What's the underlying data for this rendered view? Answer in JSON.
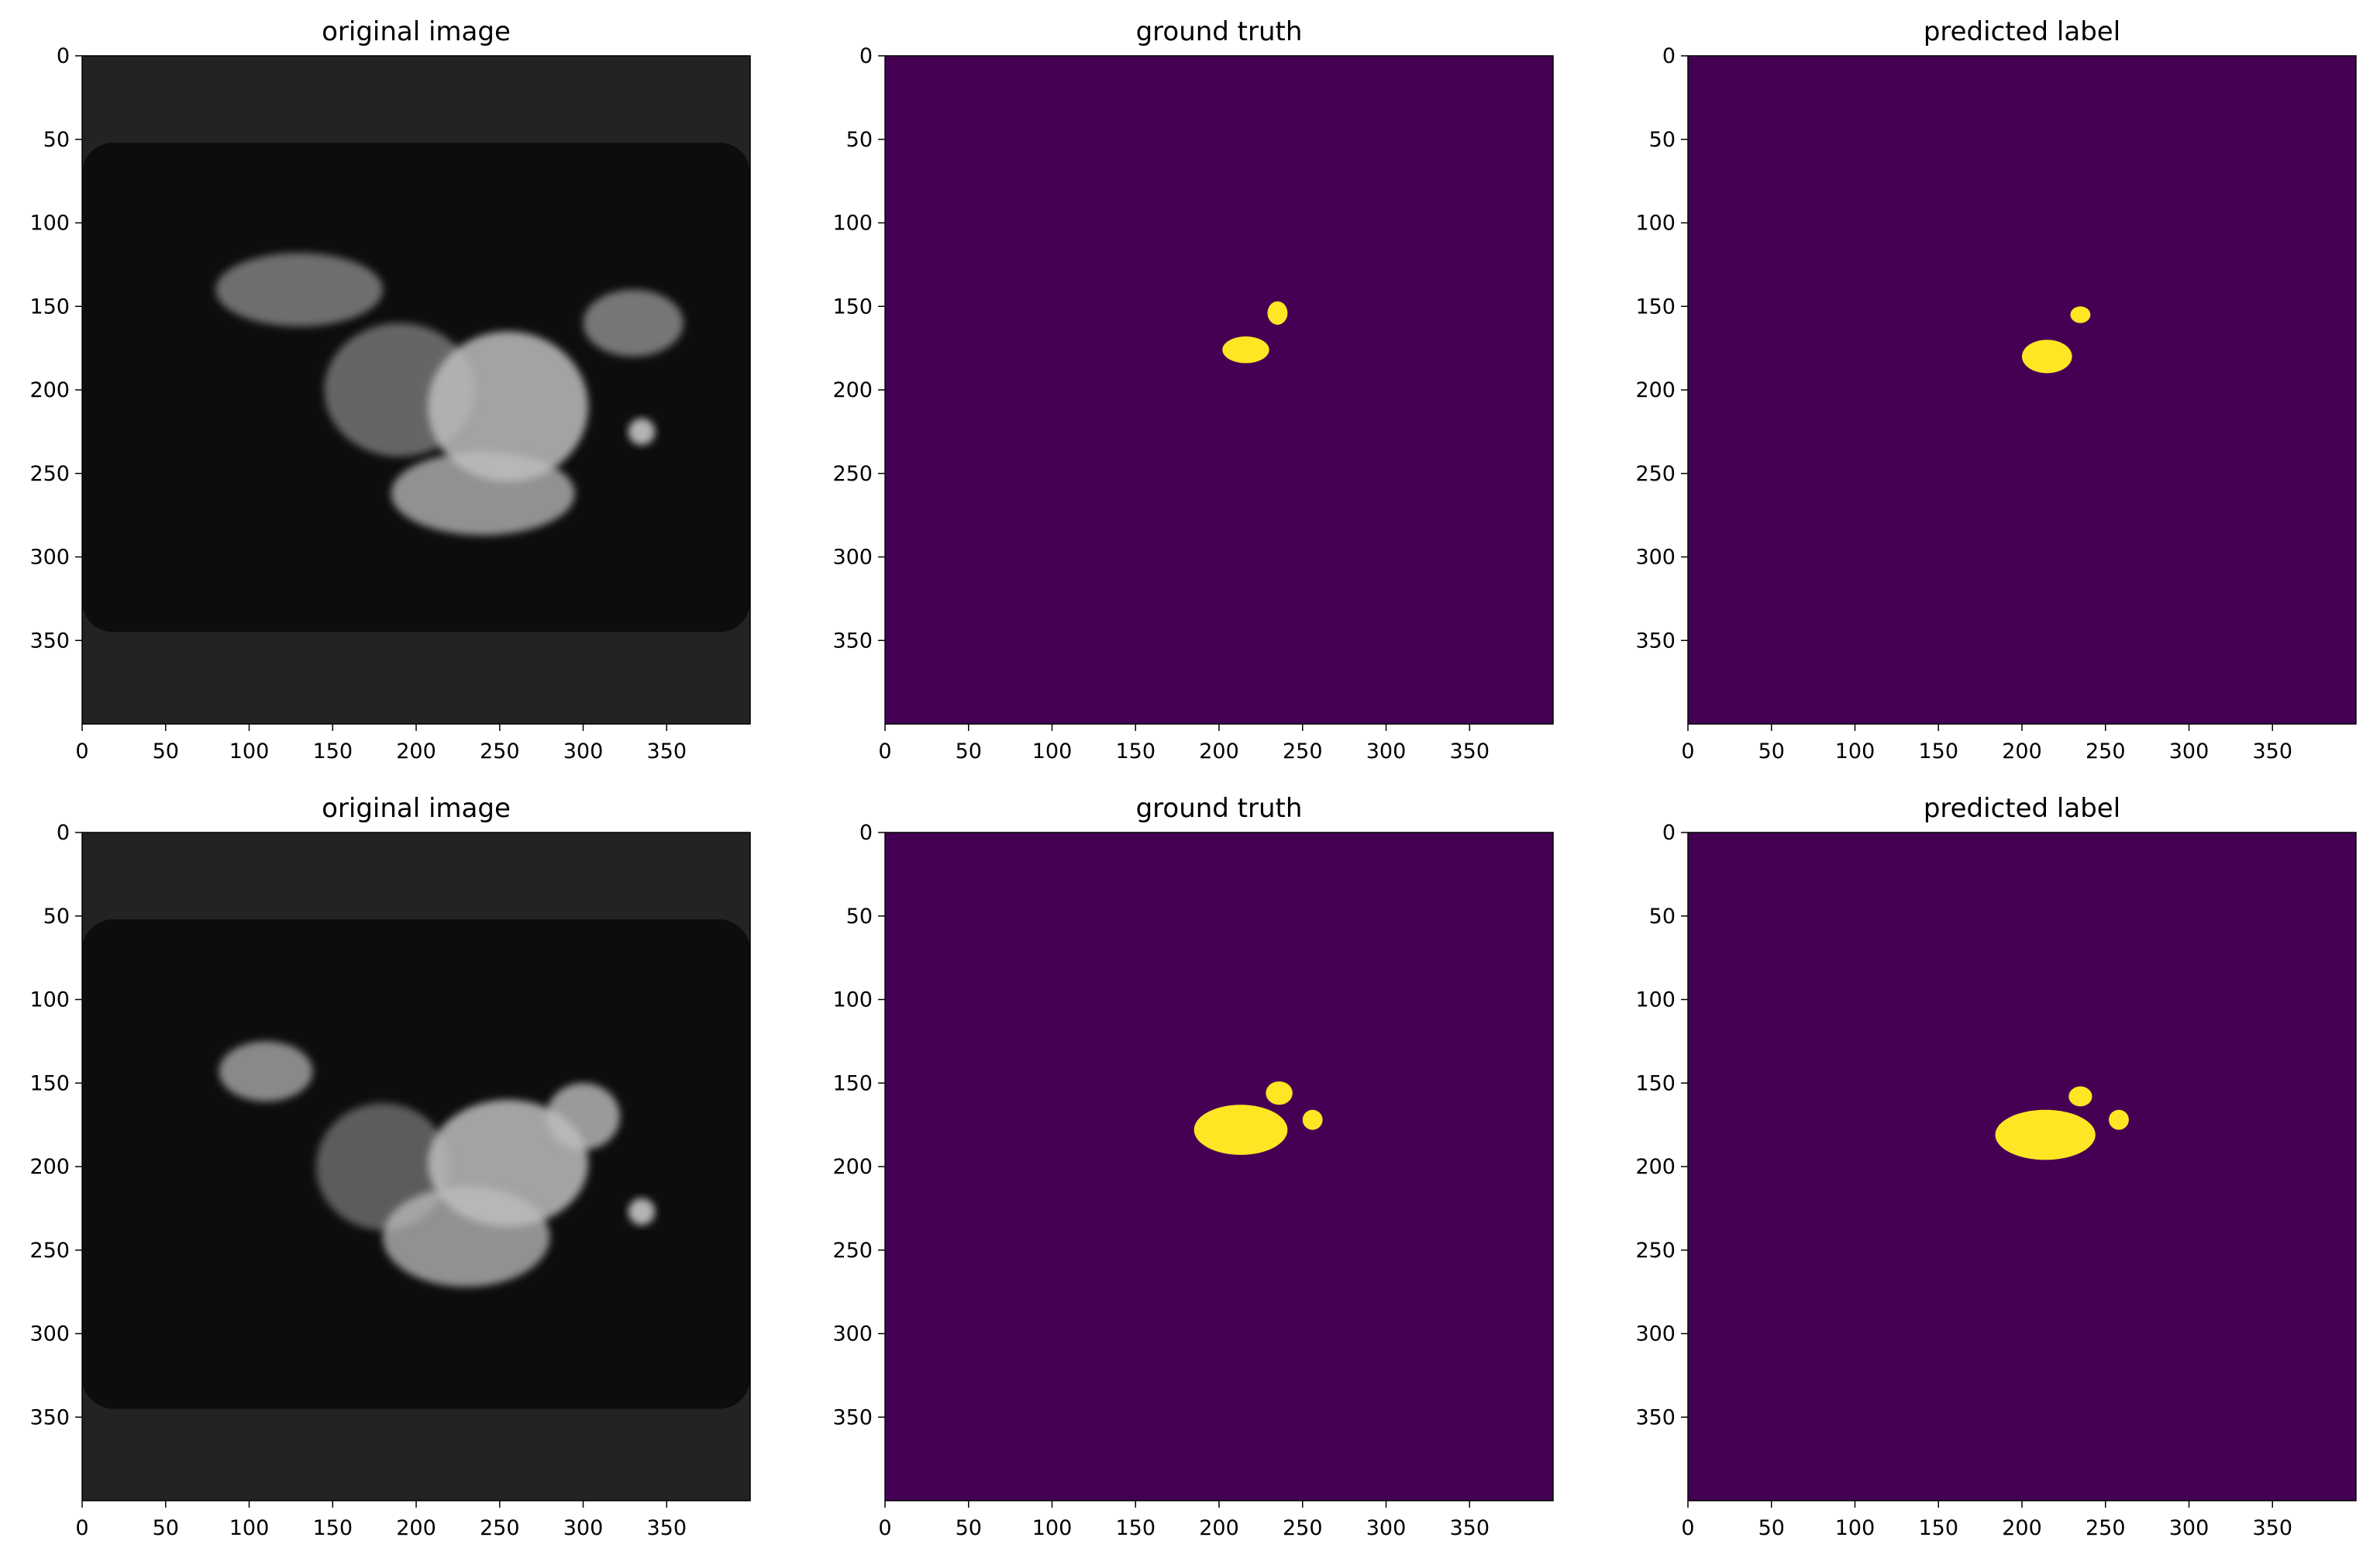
{
  "figure": {
    "rows": 2,
    "cols": 3
  },
  "chart_data": [
    {
      "type": "heatmap",
      "panel": "row1-col1",
      "title": "original image",
      "render": "mri",
      "xlim": [
        0,
        400
      ],
      "ylim": [
        400,
        0
      ],
      "xticks": [
        "0",
        "50",
        "100",
        "150",
        "200",
        "250",
        "300",
        "350"
      ],
      "yticks": [
        "0",
        "50",
        "100",
        "150",
        "200",
        "250",
        "300",
        "350"
      ],
      "colors": {
        "background": "#232323",
        "tissue": "#bdbdbd"
      },
      "body_extent": {
        "x": [
          0,
          400
        ],
        "y": [
          52,
          345
        ]
      },
      "regions": [
        {
          "cx": 255,
          "cy": 210,
          "rx": 48,
          "ry": 45,
          "level": 0.85
        },
        {
          "cx": 240,
          "cy": 262,
          "rx": 55,
          "ry": 25,
          "level": 0.75
        },
        {
          "cx": 190,
          "cy": 200,
          "rx": 45,
          "ry": 40,
          "level": 0.5
        },
        {
          "cx": 130,
          "cy": 140,
          "rx": 50,
          "ry": 22,
          "level": 0.55
        },
        {
          "cx": 330,
          "cy": 160,
          "rx": 30,
          "ry": 20,
          "level": 0.6
        },
        {
          "cx": 335,
          "cy": 225,
          "rx": 8,
          "ry": 8,
          "level": 0.95
        }
      ]
    },
    {
      "type": "heatmap",
      "panel": "row1-col2",
      "title": "ground truth",
      "render": "mask",
      "xlim": [
        0,
        400
      ],
      "ylim": [
        400,
        0
      ],
      "xticks": [
        "0",
        "50",
        "100",
        "150",
        "200",
        "250",
        "300",
        "350"
      ],
      "yticks": [
        "0",
        "50",
        "100",
        "150",
        "200",
        "250",
        "300",
        "350"
      ],
      "colors": {
        "background": "#440154",
        "label": "#fde725"
      },
      "blobs": [
        {
          "cx": 216,
          "cy": 176,
          "rx": 14,
          "ry": 8
        },
        {
          "cx": 235,
          "cy": 154,
          "rx": 6,
          "ry": 7
        }
      ]
    },
    {
      "type": "heatmap",
      "panel": "row1-col3",
      "title": "predicted label",
      "render": "mask",
      "xlim": [
        0,
        400
      ],
      "ylim": [
        400,
        0
      ],
      "xticks": [
        "0",
        "50",
        "100",
        "150",
        "200",
        "250",
        "300",
        "350"
      ],
      "yticks": [
        "0",
        "50",
        "100",
        "150",
        "200",
        "250",
        "300",
        "350"
      ],
      "colors": {
        "background": "#440154",
        "label": "#fde725"
      },
      "blobs": [
        {
          "cx": 215,
          "cy": 180,
          "rx": 15,
          "ry": 10
        },
        {
          "cx": 235,
          "cy": 155,
          "rx": 6,
          "ry": 5
        }
      ]
    },
    {
      "type": "heatmap",
      "panel": "row2-col1",
      "title": "original image",
      "render": "mri",
      "xlim": [
        0,
        400
      ],
      "ylim": [
        400,
        0
      ],
      "xticks": [
        "0",
        "50",
        "100",
        "150",
        "200",
        "250",
        "300",
        "350"
      ],
      "yticks": [
        "0",
        "50",
        "100",
        "150",
        "200",
        "250",
        "300",
        "350"
      ],
      "colors": {
        "background": "#232323",
        "tissue": "#bdbdbd"
      },
      "body_extent": {
        "x": [
          0,
          400
        ],
        "y": [
          52,
          345
        ]
      },
      "regions": [
        {
          "cx": 255,
          "cy": 198,
          "rx": 48,
          "ry": 38,
          "level": 0.85
        },
        {
          "cx": 230,
          "cy": 242,
          "rx": 50,
          "ry": 30,
          "level": 0.75
        },
        {
          "cx": 300,
          "cy": 170,
          "rx": 22,
          "ry": 20,
          "level": 0.8
        },
        {
          "cx": 180,
          "cy": 200,
          "rx": 40,
          "ry": 38,
          "level": 0.45
        },
        {
          "cx": 110,
          "cy": 143,
          "rx": 28,
          "ry": 18,
          "level": 0.7
        },
        {
          "cx": 335,
          "cy": 227,
          "rx": 8,
          "ry": 8,
          "level": 0.95
        }
      ]
    },
    {
      "type": "heatmap",
      "panel": "row2-col2",
      "title": "ground truth",
      "render": "mask",
      "xlim": [
        0,
        400
      ],
      "ylim": [
        400,
        0
      ],
      "xticks": [
        "0",
        "50",
        "100",
        "150",
        "200",
        "250",
        "300",
        "350"
      ],
      "yticks": [
        "0",
        "50",
        "100",
        "150",
        "200",
        "250",
        "300",
        "350"
      ],
      "colors": {
        "background": "#440154",
        "label": "#fde725"
      },
      "blobs": [
        {
          "cx": 213,
          "cy": 178,
          "rx": 28,
          "ry": 15
        },
        {
          "cx": 236,
          "cy": 156,
          "rx": 8,
          "ry": 7
        },
        {
          "cx": 256,
          "cy": 172,
          "rx": 6,
          "ry": 6
        }
      ]
    },
    {
      "type": "heatmap",
      "panel": "row2-col3",
      "title": "predicted label",
      "render": "mask",
      "xlim": [
        0,
        400
      ],
      "ylim": [
        400,
        0
      ],
      "xticks": [
        "0",
        "50",
        "100",
        "150",
        "200",
        "250",
        "300",
        "350"
      ],
      "yticks": [
        "0",
        "50",
        "100",
        "150",
        "200",
        "250",
        "300",
        "350"
      ],
      "colors": {
        "background": "#440154",
        "label": "#fde725"
      },
      "blobs": [
        {
          "cx": 214,
          "cy": 181,
          "rx": 30,
          "ry": 15
        },
        {
          "cx": 235,
          "cy": 158,
          "rx": 7,
          "ry": 6
        },
        {
          "cx": 258,
          "cy": 172,
          "rx": 6,
          "ry": 6
        }
      ]
    }
  ]
}
